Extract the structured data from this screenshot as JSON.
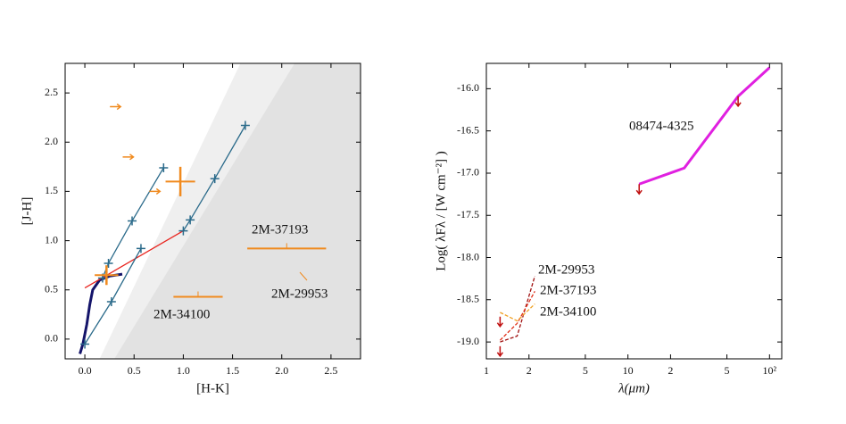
{
  "chart_data": [
    {
      "type": "line",
      "x_label": "[H-K]",
      "y_label": "[J-H]",
      "xlim": [
        -0.2,
        2.8
      ],
      "ylim": [
        -0.2,
        2.8
      ],
      "xticks": [
        {
          "value": 0,
          "label": "0.0"
        },
        {
          "value": 0.5,
          "label": "0.5"
        },
        {
          "value": 1,
          "label": "1.0"
        },
        {
          "value": 1.5,
          "label": "1.5"
        },
        {
          "value": 2,
          "label": "2.0"
        },
        {
          "value": 2.5,
          "label": "2.5"
        }
      ],
      "yticks": [
        {
          "value": 0,
          "label": "0.0"
        },
        {
          "value": 0.5,
          "label": "0.5"
        },
        {
          "value": 1,
          "label": "1.0"
        },
        {
          "value": 1.5,
          "label": "1.5"
        },
        {
          "value": 2,
          "label": "2.0"
        },
        {
          "value": 2.5,
          "label": "2.5"
        }
      ],
      "regions": [
        {
          "color": "#efefef",
          "x": [
            0.15,
            1.58,
            2.8,
            2.8
          ],
          "y": [
            -0.2,
            2.8,
            2.8,
            -0.2
          ]
        },
        {
          "color": "#e2e2e2",
          "x": [
            0.3,
            2.13,
            2.8,
            2.8
          ],
          "y": [
            -0.2,
            2.8,
            2.8,
            -0.2
          ]
        }
      ],
      "series": [
        {
          "color": "#14146a",
          "x": [
            -0.05,
            -0.02,
            0.02,
            0.05,
            0.08,
            0.15,
            0.25,
            0.38
          ],
          "y": [
            -0.15,
            -0.05,
            0.15,
            0.35,
            0.5,
            0.6,
            0.64,
            0.66
          ]
        },
        {
          "color": "#e8251f",
          "x": [
            0.0,
            1.0
          ],
          "y": [
            0.52,
            1.1
          ]
        },
        {
          "color": "#2a6a8a",
          "marker": "plus",
          "x": [
            0.18,
            0.24,
            0.48,
            0.8
          ],
          "y": [
            0.62,
            0.77,
            1.2,
            1.74
          ]
        },
        {
          "color": "#2a6a8a",
          "marker": "plus",
          "x": [
            0.0,
            0.27,
            0.57
          ],
          "y": [
            -0.05,
            0.38,
            0.92
          ]
        },
        {
          "color": "#2a6a8a",
          "marker": "plus",
          "x": [
            1.0,
            1.07,
            1.32,
            1.63
          ],
          "y": [
            1.1,
            1.21,
            1.63,
            2.17
          ]
        }
      ],
      "points": {
        "color": "#f08a1e",
        "x": [
          0.22,
          0.97,
          2.05,
          1.15
        ],
        "y": [
          0.65,
          1.6,
          0.92,
          0.43
        ],
        "xerr": [
          0.12,
          0.15,
          0.4,
          0.25
        ],
        "yerr": [
          0.1,
          0.15,
          0,
          0
        ]
      },
      "limits": {
        "color": "#f08a1e",
        "direction": "right",
        "x": [
          0.3,
          0.43,
          0.7
        ],
        "y": [
          2.36,
          1.85,
          1.5
        ]
      },
      "annotations": [
        "2M-37193",
        "2M-29953",
        "2M-34100"
      ]
    },
    {
      "type": "line",
      "x_label": "λ(μm)",
      "y_label": "Log( λFλ / [W cm⁻²] )",
      "xscale": "log",
      "xlim": [
        1,
        122
      ],
      "ylim": [
        -19.2,
        -15.7
      ],
      "xticks": [
        1,
        2,
        5,
        10,
        {
          "value": 20,
          "label": "2"
        },
        {
          "value": 50,
          "label": "5"
        },
        {
          "value": 100,
          "label": "10²"
        }
      ],
      "yticks": [
        {
          "value": -19,
          "label": "-19.0"
        },
        {
          "value": -18.5,
          "label": "-18.5"
        },
        {
          "value": -18,
          "label": "-18.0"
        },
        {
          "value": -17.5,
          "label": "-17.5"
        },
        {
          "value": -17,
          "label": "-17.0"
        },
        {
          "value": -16.5,
          "label": "-16.5"
        },
        {
          "value": -16,
          "label": "-16.0"
        }
      ],
      "series": [
        {
          "name": "08474-4325",
          "color": "#e020e0",
          "x": [
            12,
            25,
            60,
            100
          ],
          "y": [
            -17.13,
            -16.94,
            -16.09,
            -15.75
          ]
        },
        {
          "name": "2M-29953",
          "color": "#a01010",
          "dash": true,
          "x": [
            1.25,
            1.65,
            2.2
          ],
          "y": [
            -19.0,
            -18.93,
            -18.22
          ]
        },
        {
          "name": "2M-37193",
          "color": "#e03018",
          "dash": true,
          "x": [
            1.25,
            1.65,
            2.2
          ],
          "y": [
            -18.98,
            -18.78,
            -18.4
          ]
        },
        {
          "name": "2M-34100",
          "color": "#f0a020",
          "dash": true,
          "x": [
            1.25,
            1.65,
            2.2
          ],
          "y": [
            -18.65,
            -18.75,
            -18.55
          ]
        }
      ],
      "limits": {
        "color": "#c01010",
        "direction": "down",
        "x": [
          12,
          60,
          1.25,
          1.25
        ],
        "y": [
          -17.13,
          -16.09,
          -18.7,
          -19.05
        ]
      }
    }
  ]
}
